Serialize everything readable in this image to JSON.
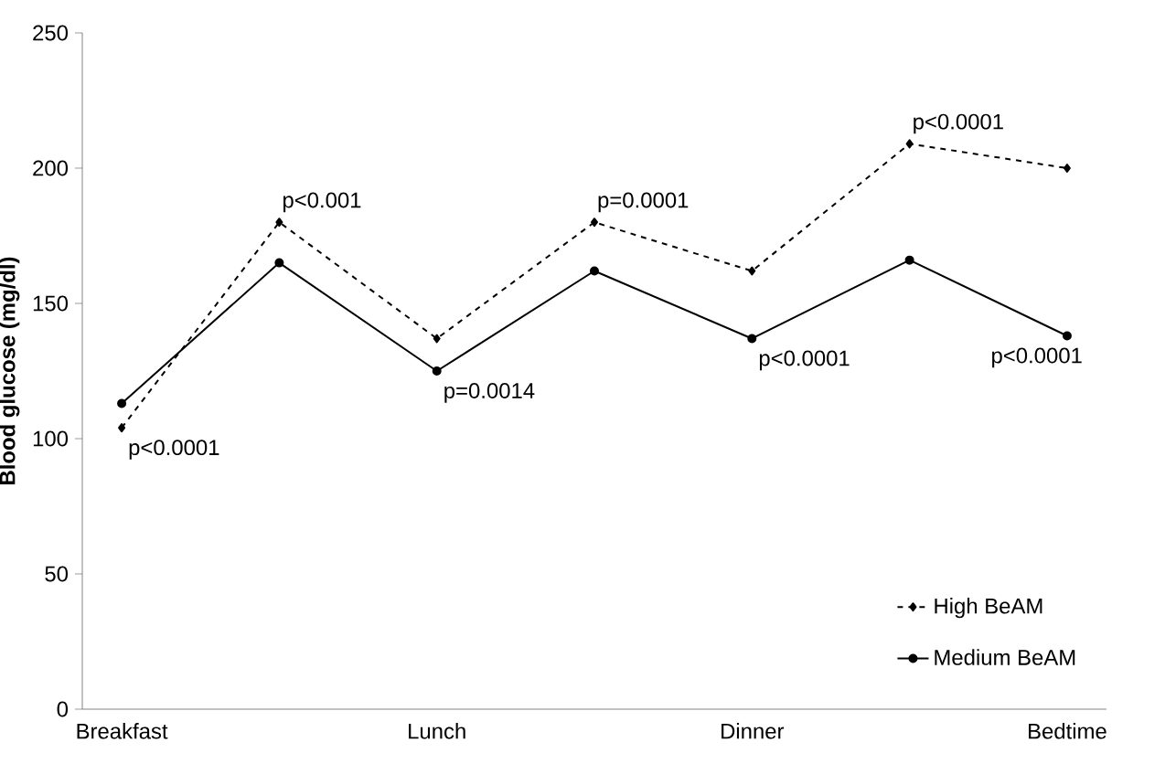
{
  "chart_data": {
    "type": "line",
    "ylabel": "Blood glucose (mg/dl)",
    "categories": [
      "Breakfast",
      null,
      "Lunch",
      null,
      "Dinner",
      null,
      "Bedtime"
    ],
    "series": [
      {
        "name": "High BeAM",
        "color": "#000000",
        "line_style": "dashed",
        "marker": "diamond",
        "values": [
          104,
          180,
          137,
          180,
          162,
          209,
          200
        ]
      },
      {
        "name": "Medium BeAM",
        "color": "#000000",
        "line_style": "solid",
        "marker": "circle",
        "values": [
          113,
          165,
          125,
          162,
          137,
          166,
          138
        ]
      }
    ],
    "ylim": [
      0,
      250
    ],
    "yticks": [
      0,
      50,
      100,
      150,
      200,
      250
    ],
    "grid": false,
    "legend": "bottom right",
    "annotations": [
      "p<0.0001",
      "p<0.001",
      "p=0.0014",
      "p=0.0001",
      "p<0.0001",
      "p<0.0001",
      "p<0.0001"
    ]
  }
}
